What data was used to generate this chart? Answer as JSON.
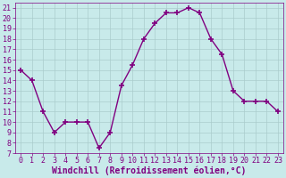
{
  "x": [
    0,
    1,
    2,
    3,
    4,
    5,
    6,
    7,
    8,
    9,
    10,
    11,
    12,
    13,
    14,
    15,
    16,
    17,
    18,
    19,
    20,
    21,
    22,
    23
  ],
  "y": [
    15,
    14,
    11,
    9,
    10,
    10,
    10,
    7.5,
    9,
    13.5,
    15.5,
    18,
    19.5,
    20.5,
    20.5,
    21,
    20.5,
    18,
    16.5,
    13,
    12,
    12,
    12,
    11
  ],
  "line_color": "#800080",
  "marker": "+",
  "markersize": 4,
  "markeredgewidth": 1.2,
  "bg_color": "#c8eaea",
  "grid_color": "#aacccc",
  "xlabel": "Windchill (Refroidissement éolien,°C)",
  "xlabel_color": "#800080",
  "xlabel_fontsize": 7,
  "tick_color": "#800080",
  "tick_fontsize": 6,
  "ylim": [
    7,
    21.5
  ],
  "yticks": [
    7,
    8,
    9,
    10,
    11,
    12,
    13,
    14,
    15,
    16,
    17,
    18,
    19,
    20,
    21
  ],
  "xlim": [
    -0.5,
    23.5
  ],
  "xticks": [
    0,
    1,
    2,
    3,
    4,
    5,
    6,
    7,
    8,
    9,
    10,
    11,
    12,
    13,
    14,
    15,
    16,
    17,
    18,
    19,
    20,
    21,
    22,
    23
  ],
  "spine_color": "#800080",
  "linewidth": 1.0
}
